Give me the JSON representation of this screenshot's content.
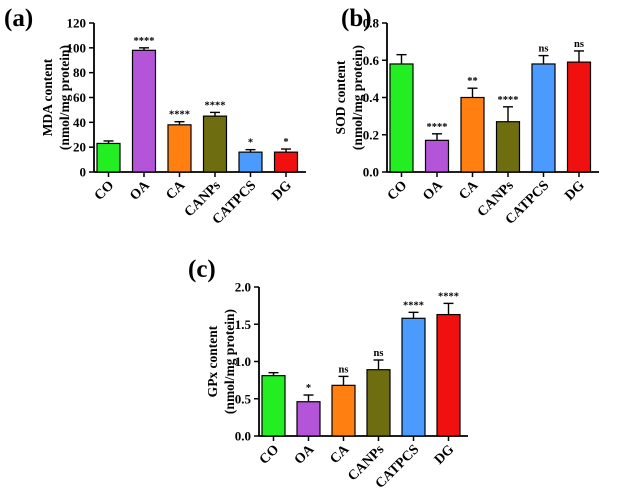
{
  "chart_data": [
    {
      "type": "bar",
      "panel_label": "(a)",
      "ylabel_line1": "MDA content",
      "ylabel_line2": "(nmol/mg protein)",
      "categories": [
        "CO",
        "OA",
        "CA",
        "CANPs",
        "CATPCS",
        "DG"
      ],
      "values": [
        23,
        98,
        38,
        45,
        16,
        16
      ],
      "errors": [
        2,
        2,
        2.5,
        3,
        2,
        2.5
      ],
      "significance": [
        "",
        "****",
        "****",
        "****",
        "*",
        "*"
      ],
      "ylim": [
        0,
        120
      ],
      "yticks": [
        "0",
        "20",
        "40",
        "60",
        "80",
        "100",
        "120"
      ],
      "colors": [
        "#22ee22",
        "#b455d9",
        "#ff8010",
        "#6e6e10",
        "#4b9bff",
        "#f01010"
      ]
    },
    {
      "type": "bar",
      "panel_label": "(b)",
      "ylabel_line1": "SOD content",
      "ylabel_line2": "(nmol/mg protein)",
      "categories": [
        "CO",
        "OA",
        "CA",
        "CANPs",
        "CATPCS",
        "DG"
      ],
      "values": [
        0.58,
        0.17,
        0.4,
        0.27,
        0.58,
        0.59
      ],
      "errors": [
        0.05,
        0.035,
        0.05,
        0.08,
        0.045,
        0.06
      ],
      "significance": [
        "",
        "****",
        "**",
        "****",
        "ns",
        "ns"
      ],
      "ylim": [
        0,
        0.8
      ],
      "yticks": [
        "0.0",
        "0.2",
        "0.4",
        "0.6",
        "0.8"
      ],
      "colors": [
        "#22ee22",
        "#b455d9",
        "#ff8010",
        "#6e6e10",
        "#4b9bff",
        "#f01010"
      ]
    },
    {
      "type": "bar",
      "panel_label": "(c)",
      "ylabel_line1": "GPx content",
      "ylabel_line2": "(nmol/mg protein)",
      "categories": [
        "CO",
        "OA",
        "CA",
        "CANPs",
        "CATPCS",
        "DG"
      ],
      "values": [
        0.81,
        0.46,
        0.68,
        0.89,
        1.58,
        1.63
      ],
      "errors": [
        0.04,
        0.09,
        0.12,
        0.13,
        0.08,
        0.15
      ],
      "significance": [
        "",
        "*",
        "ns",
        "ns",
        "****",
        "****"
      ],
      "ylim": [
        0,
        2.0
      ],
      "yticks": [
        "0.0",
        "0.5",
        "1.0",
        "1.5",
        "2.0"
      ],
      "colors": [
        "#22ee22",
        "#b455d9",
        "#ff8010",
        "#6e6e10",
        "#4b9bff",
        "#f01010"
      ]
    }
  ]
}
